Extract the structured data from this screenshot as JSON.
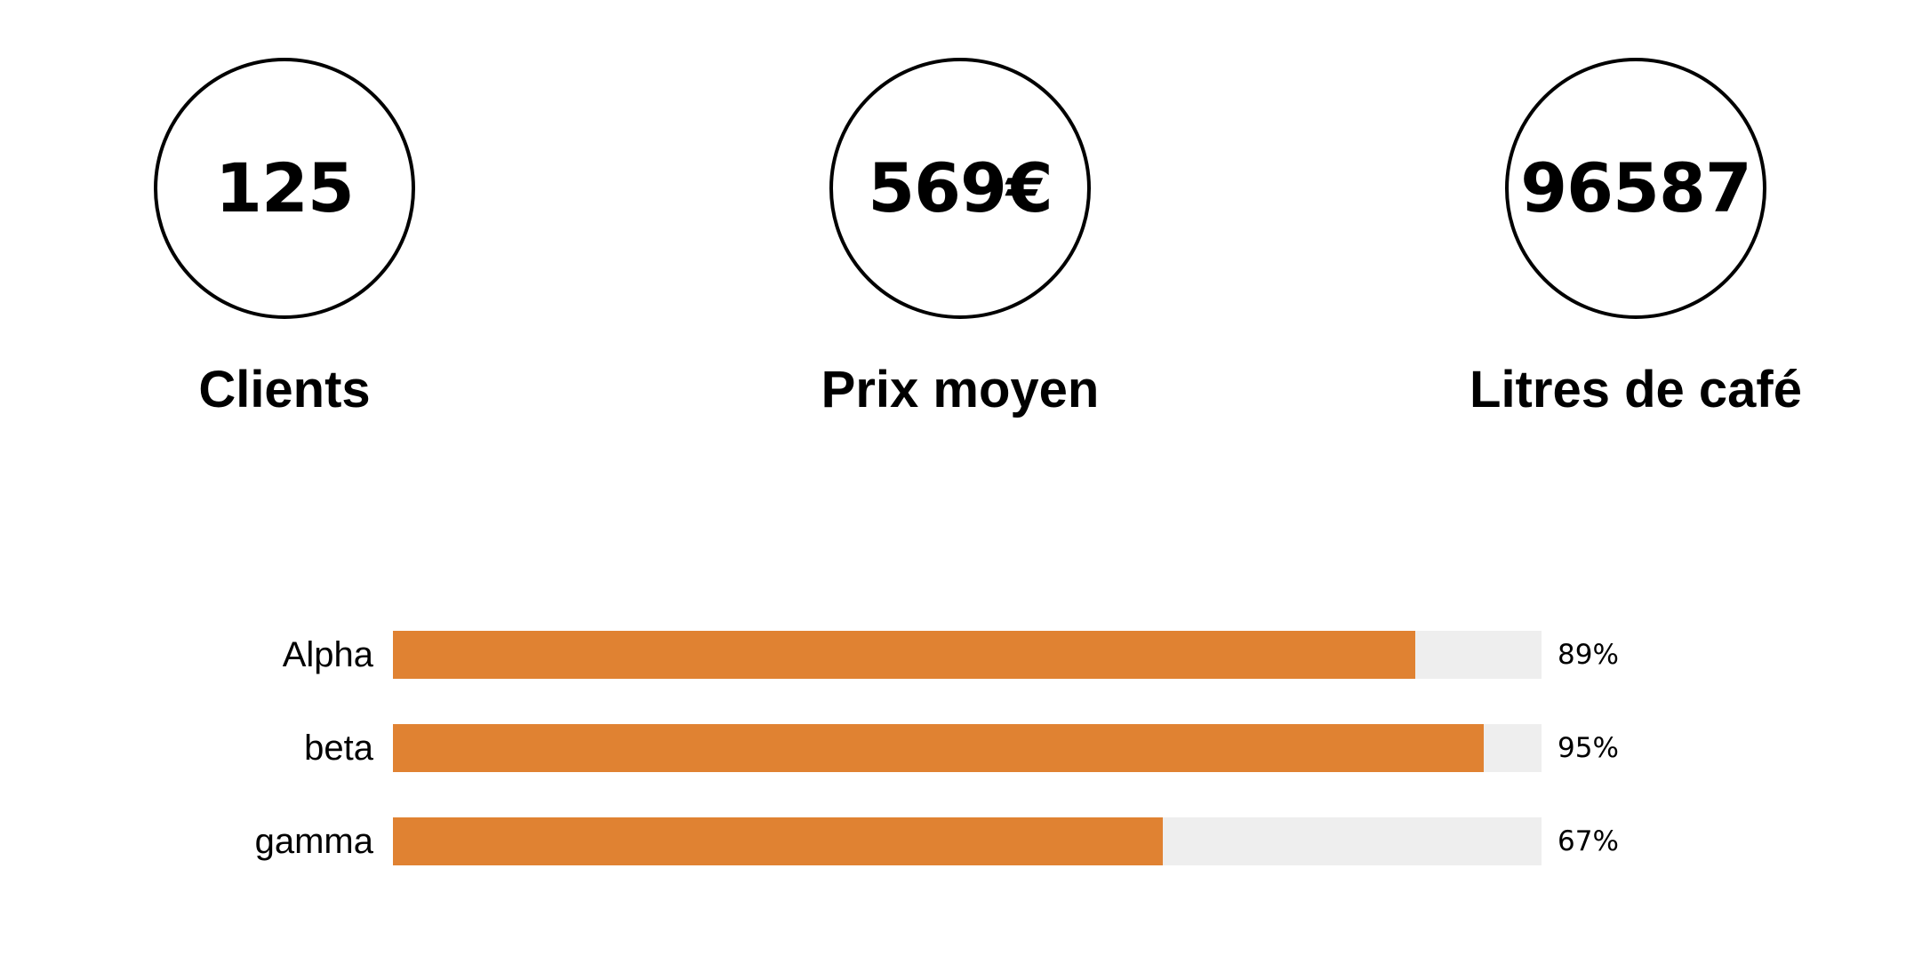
{
  "stats": [
    {
      "value": "125",
      "label": "Clients"
    },
    {
      "value": "569€",
      "label": "Prix moyen"
    },
    {
      "value": "96587",
      "label": "Litres de café"
    }
  ],
  "skills": [
    {
      "name": "Alpha",
      "percent_text": "89%",
      "percent": 89
    },
    {
      "name": "beta",
      "percent_text": "95%",
      "percent": 95
    },
    {
      "name": "gamma",
      "percent_text": "67%",
      "percent": 67
    }
  ],
  "colors": {
    "accent": "#e08232",
    "track": "#eeeeee",
    "text": "#000000"
  }
}
